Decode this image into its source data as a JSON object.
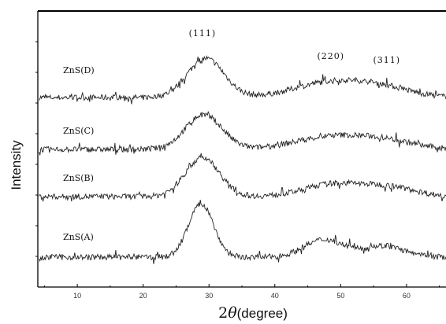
{
  "chart_data": {
    "type": "line",
    "xlabel": {
      "prefix": "2",
      "symbol": "θ",
      "suffix": "(degree)"
    },
    "ylabel": "Intensity",
    "xlim": [
      4,
      66
    ],
    "x_ticks": [
      10,
      20,
      30,
      40,
      50,
      60
    ],
    "grid": false,
    "legend": "none",
    "peaks": [
      {
        "label": "(111)",
        "x": 29
      },
      {
        "label": "(220)",
        "x": 48.5
      },
      {
        "label": "(311)",
        "x": 57
      }
    ],
    "series": [
      {
        "name": "ZnS(D)",
        "baseline": 0.28,
        "peaks": [
          {
            "x": 29.5,
            "h": 0.62,
            "w": 2.8
          },
          {
            "x": 48.5,
            "h": 0.24,
            "w": 5.5
          },
          {
            "x": 56.5,
            "h": 0.13,
            "w": 4.5
          }
        ]
      },
      {
        "name": "ZnS(C)",
        "baseline": 0.26,
        "peaks": [
          {
            "x": 29.2,
            "h": 0.55,
            "w": 2.8
          },
          {
            "x": 48.5,
            "h": 0.2,
            "w": 5.5
          },
          {
            "x": 57,
            "h": 0.12,
            "w": 4.5
          }
        ]
      },
      {
        "name": "ZnS(B)",
        "baseline": 0.22,
        "peaks": [
          {
            "x": 29.0,
            "h": 0.62,
            "w": 2.6
          },
          {
            "x": 49,
            "h": 0.2,
            "w": 4.5
          },
          {
            "x": 57.5,
            "h": 0.14,
            "w": 4.0
          }
        ]
      },
      {
        "name": "ZnS(A)",
        "baseline": 0.25,
        "peaks": [
          {
            "x": 28.8,
            "h": 0.85,
            "w": 1.9
          },
          {
            "x": 47.5,
            "h": 0.28,
            "w": 3.0
          },
          {
            "x": 56.5,
            "h": 0.18,
            "w": 3.0
          }
        ]
      }
    ]
  }
}
